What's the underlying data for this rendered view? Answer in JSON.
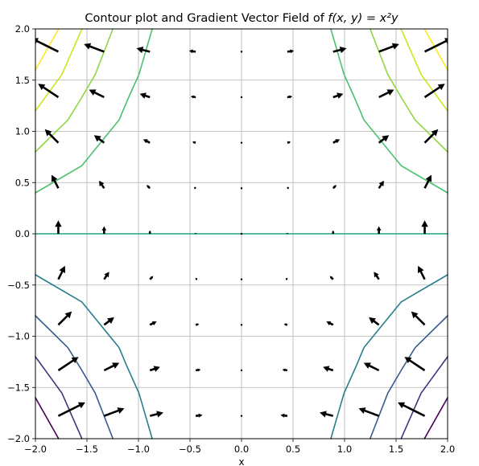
{
  "chart_data": {
    "type": "contour",
    "title": "Contour plot and Gradient Vector Field of ",
    "title_math": "f(x, y) = x²y",
    "xlabel": "x",
    "ylabel": "",
    "xlim": [
      -2.0,
      2.0
    ],
    "ylim": [
      -2.0,
      2.0
    ],
    "xticks": [
      "−2.0",
      "−1.5",
      "−1.0",
      "−0.5",
      "0.0",
      "0.5",
      "1.0",
      "1.5",
      "2.0"
    ],
    "yticks": [
      "2.0",
      "1.5",
      "1.0",
      "0.5",
      "0.0",
      "−0.5",
      "−1.0",
      "−1.5",
      "−2.0"
    ],
    "xtick_values": [
      -2.0,
      -1.5,
      -1.0,
      -0.5,
      0.0,
      0.5,
      1.0,
      1.5,
      2.0
    ],
    "ytick_values": [
      2.0,
      1.5,
      1.0,
      0.5,
      0.0,
      -0.5,
      -1.0,
      -1.5,
      -2.0
    ],
    "grid": true,
    "function": "x^2*y",
    "contour_levels": [
      -6.4,
      -4.8,
      -3.2,
      -1.6,
      0.0,
      1.6,
      3.2,
      4.8,
      6.4
    ],
    "contour_colors": [
      "#440154",
      "#46327e",
      "#365c8d",
      "#277f8e",
      "#21a585",
      "#4ac16d",
      "#8fd744",
      "#d2e21b",
      "#fde725"
    ],
    "grid_points": [
      -2.0,
      -1.5555556,
      -1.1111111,
      -0.6666667,
      -0.2222222,
      0.2222222,
      0.6666667,
      1.1111111,
      1.5555556,
      2.0
    ],
    "quiver_points": [
      -1.7777778,
      -1.3333333,
      -0.8888889,
      -0.4444444,
      0.0,
      0.4444444,
      0.8888889,
      1.3333333,
      1.7777778
    ],
    "quiver_scale_per_unit": 5.3,
    "quiver_color": "#000000"
  }
}
